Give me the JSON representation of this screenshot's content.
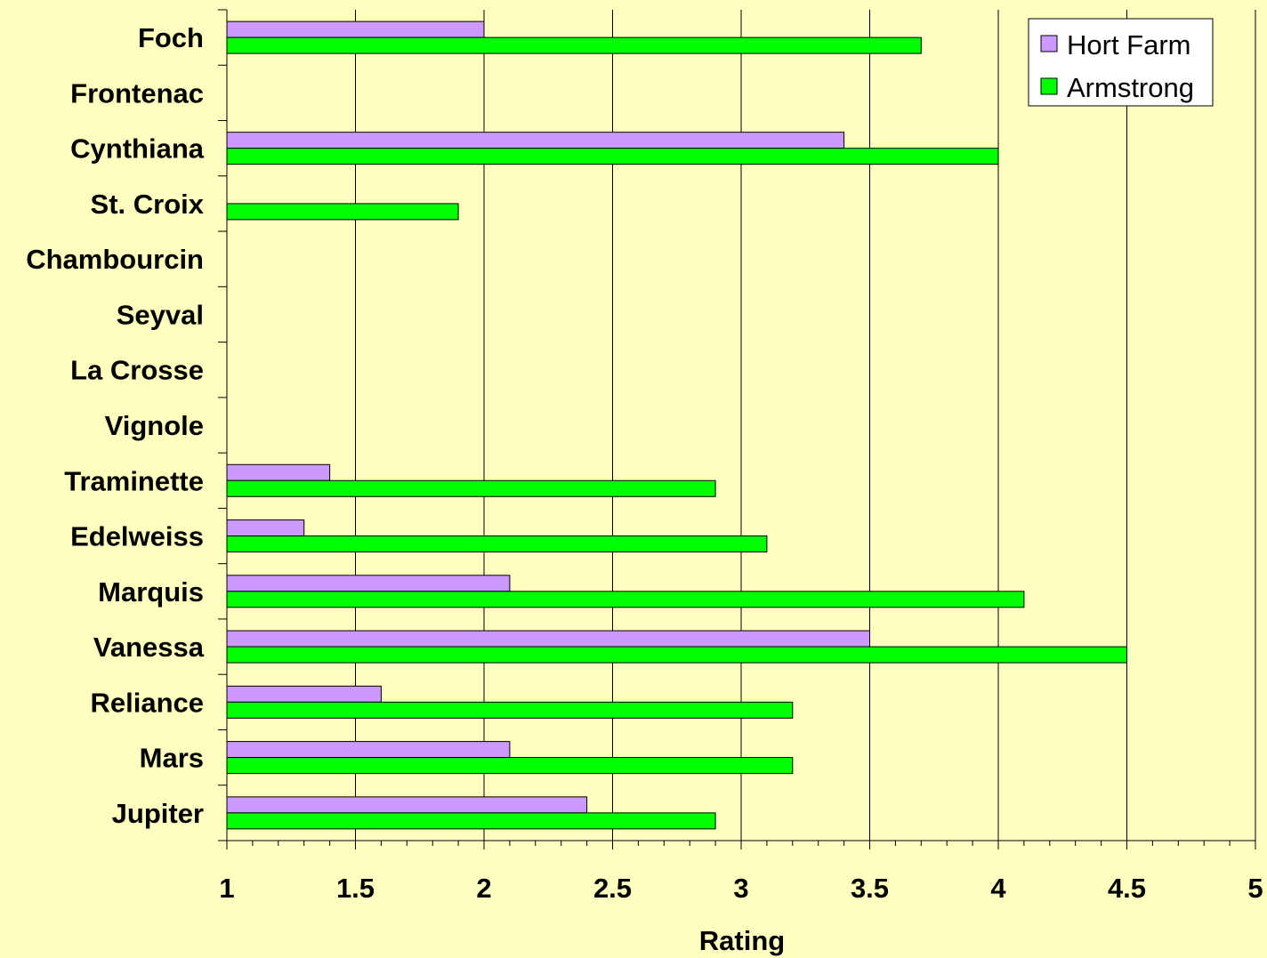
{
  "chart_data": {
    "type": "bar",
    "orientation": "horizontal",
    "categories": [
      "Foch",
      "Frontenac",
      "Cynthiana",
      "St. Croix",
      "Chambourcin",
      "Seyval",
      "La Crosse",
      "Vignole",
      "Traminette",
      "Edelweiss",
      "Marquis",
      "Vanessa",
      "Reliance",
      "Mars",
      "Jupiter"
    ],
    "series": [
      {
        "name": "Hort Farm",
        "color": "#cc99ff",
        "values": [
          2.0,
          null,
          3.4,
          null,
          null,
          null,
          null,
          null,
          1.4,
          1.3,
          2.1,
          3.5,
          1.6,
          2.1,
          2.4
        ]
      },
      {
        "name": "Armstrong",
        "color": "#00ff00",
        "values": [
          3.7,
          null,
          4.0,
          1.9,
          null,
          null,
          null,
          null,
          2.9,
          3.1,
          4.1,
          4.5,
          3.2,
          3.2,
          2.9
        ]
      }
    ],
    "xlabel": "Rating",
    "xlim": [
      1,
      5
    ],
    "xticks": [
      "1",
      "1.5",
      "2",
      "2.5",
      "3",
      "3.5",
      "4",
      "4.5",
      "5"
    ],
    "grid": true,
    "legend_position": "top-right",
    "background_color": "#ffffc0"
  }
}
